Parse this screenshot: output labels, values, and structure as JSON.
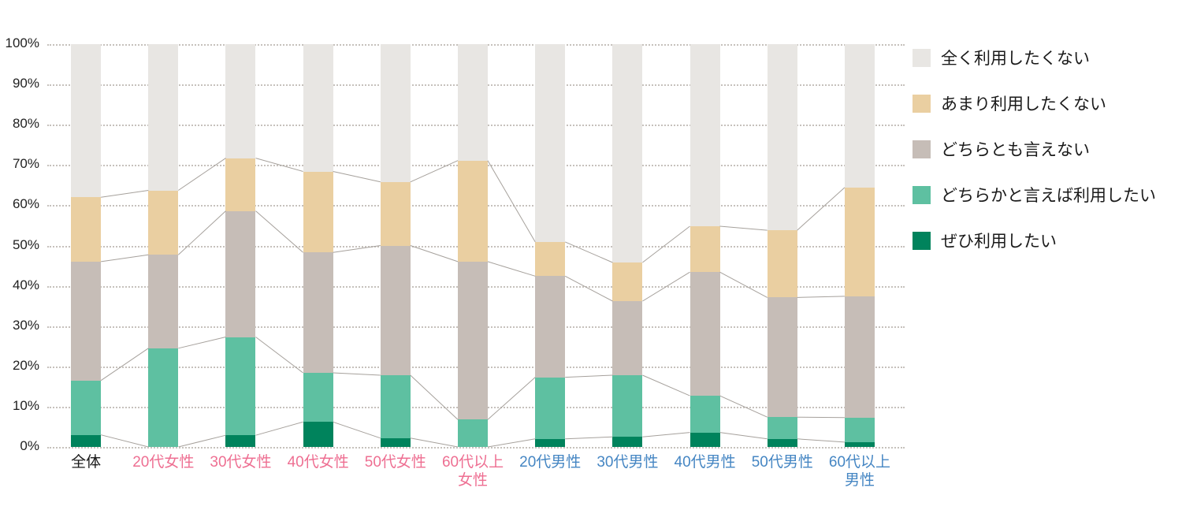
{
  "chart_data": {
    "type": "bar",
    "variant": "stacked-100-percent-vertical",
    "title": "",
    "xlabel": "",
    "ylabel": "",
    "ylim": [
      0,
      100
    ],
    "grid": "dotted-horizontal-every-10pct",
    "legend_position": "right",
    "y_ticks": [
      "100%",
      "90%",
      "80%",
      "70%",
      "60%",
      "50%",
      "40%",
      "30%",
      "20%",
      "10%",
      "0%"
    ],
    "categories": [
      {
        "lines": [
          "全体"
        ],
        "group": "overall"
      },
      {
        "lines": [
          "20代女性"
        ],
        "group": "female"
      },
      {
        "lines": [
          "30代女性"
        ],
        "group": "female"
      },
      {
        "lines": [
          "40代女性"
        ],
        "group": "female"
      },
      {
        "lines": [
          "50代女性"
        ],
        "group": "female"
      },
      {
        "lines": [
          "60代以上",
          "女性"
        ],
        "group": "female"
      },
      {
        "lines": [
          "20代男性"
        ],
        "group": "male"
      },
      {
        "lines": [
          "30代男性"
        ],
        "group": "male"
      },
      {
        "lines": [
          "40代男性"
        ],
        "group": "male"
      },
      {
        "lines": [
          "50代男性"
        ],
        "group": "male"
      },
      {
        "lines": [
          "60代以上",
          "男性"
        ],
        "group": "male"
      }
    ],
    "category_label_colors": {
      "overall": "#1a1a1a",
      "female": "#ee6f92",
      "male": "#4586c3"
    },
    "series_bottom_to_top": [
      {
        "name": "ぜひ利用したい",
        "color": "#00835c",
        "values": [
          3.0,
          0.0,
          2.9,
          6.2,
          2.2,
          0.0,
          2.0,
          2.5,
          3.6,
          2.0,
          1.2
        ]
      },
      {
        "name": "どちらかと言えば利用したい",
        "color": "#5ec0a1",
        "values": [
          13.5,
          24.5,
          24.4,
          12.2,
          15.6,
          6.8,
          15.3,
          15.3,
          9.1,
          5.4,
          6.1
        ]
      },
      {
        "name": "どちらとも言えない",
        "color": "#c6bdb7",
        "values": [
          29.5,
          23.2,
          31.3,
          29.9,
          32.2,
          39.2,
          25.1,
          18.4,
          30.7,
          29.7,
          30.1
        ]
      },
      {
        "name": "あまり利用したくない",
        "color": "#eacfa1",
        "values": [
          16.0,
          16.0,
          13.1,
          20.1,
          15.8,
          25.1,
          8.5,
          9.6,
          11.4,
          16.7,
          27.0
        ]
      },
      {
        "name": "全く利用したくない",
        "color": "#e8e6e3",
        "values": [
          38.0,
          36.3,
          28.3,
          31.6,
          34.2,
          28.9,
          49.1,
          54.2,
          45.2,
          46.2,
          35.6
        ]
      }
    ],
    "legend_top_to_bottom": [
      "全く利用したくない",
      "あまり利用したくない",
      "どちらとも言えない",
      "どちらかと言えば利用したい",
      "ぜひ利用したい"
    ],
    "connector_line_color": "#a6a19c",
    "gridline_color": "#c6c1bc"
  }
}
